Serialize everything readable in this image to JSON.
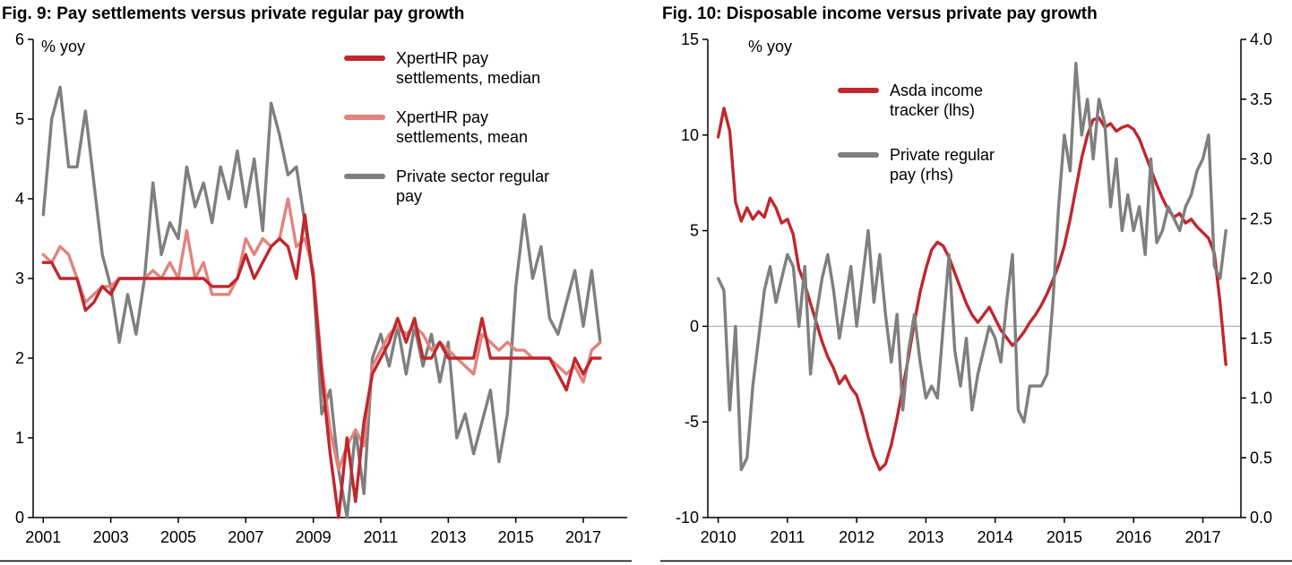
{
  "page": {
    "background": "#ffffff"
  },
  "colors": {
    "dark_red": "#c0272d",
    "light_red": "#e2837e",
    "gray": "#7f7f7f",
    "axis": "#000000",
    "zero_line": "#a6a6a6"
  },
  "chart_data": [
    {
      "type": "line",
      "title": "Fig. 9: Pay settlements versus private regular pay growth",
      "unit_label": "% yoy",
      "xlim": [
        2000.7,
        2018.3
      ],
      "xticks": [
        2001,
        2003,
        2005,
        2007,
        2009,
        2011,
        2013,
        2015,
        2017
      ],
      "axes": {
        "left": {
          "lim": [
            0,
            6
          ],
          "ticks": [
            0,
            1,
            2,
            3,
            4,
            5,
            6
          ],
          "labels": [
            "0",
            "1",
            "2",
            "3",
            "4",
            "5",
            "6"
          ]
        }
      },
      "legend_position": "top-right-inside",
      "grid": "off",
      "series": [
        {
          "name": "Private sector regular pay",
          "color": "#7f7f7f",
          "axis": "left",
          "x_start": 2001.0,
          "x_step": 0.25,
          "y": [
            3.8,
            5.0,
            5.4,
            4.4,
            4.4,
            5.1,
            4.2,
            3.3,
            2.9,
            2.2,
            2.8,
            2.3,
            3.0,
            4.2,
            3.3,
            3.7,
            3.5,
            4.4,
            3.9,
            4.2,
            3.7,
            4.4,
            4.0,
            4.6,
            3.9,
            4.5,
            3.6,
            5.2,
            4.8,
            4.3,
            4.4,
            3.7,
            3.0,
            1.3,
            1.6,
            0.6,
            0.0,
            1.1,
            0.3,
            2.0,
            2.3,
            1.9,
            2.4,
            1.8,
            2.4,
            1.9,
            2.3,
            1.7,
            2.2,
            1.0,
            1.3,
            0.8,
            1.2,
            1.6,
            0.7,
            1.3,
            2.9,
            3.8,
            3.0,
            3.4,
            2.5,
            2.3,
            2.7,
            3.1,
            2.4,
            3.1,
            2.2
          ]
        },
        {
          "name": "XpertHR pay settlements, mean",
          "color": "#e2837e",
          "axis": "left",
          "x_start": 2001.0,
          "x_step": 0.25,
          "y": [
            3.3,
            3.2,
            3.4,
            3.3,
            3.0,
            2.7,
            2.8,
            2.9,
            2.9,
            3.0,
            3.0,
            3.0,
            3.0,
            3.1,
            3.0,
            3.2,
            3.0,
            3.6,
            3.0,
            3.2,
            2.8,
            2.8,
            2.8,
            3.0,
            3.5,
            3.3,
            3.5,
            3.4,
            3.5,
            4.0,
            3.4,
            3.5,
            3.1,
            1.9,
            1.1,
            0.6,
            0.9,
            1.1,
            0.9,
            1.9,
            2.1,
            2.3,
            2.4,
            2.3,
            2.4,
            2.3,
            2.1,
            2.2,
            2.1,
            2.0,
            1.9,
            1.8,
            2.3,
            2.2,
            2.1,
            2.2,
            2.1,
            2.1,
            2.0,
            2.0,
            2.0,
            1.9,
            1.8,
            1.9,
            1.7,
            2.1,
            2.2
          ]
        },
        {
          "name": "XpertHR pay settlements, median",
          "color": "#c0272d",
          "axis": "left",
          "x_start": 2001.0,
          "x_step": 0.25,
          "y": [
            3.2,
            3.2,
            3.0,
            3.0,
            3.0,
            2.6,
            2.7,
            2.9,
            2.8,
            3.0,
            3.0,
            3.0,
            3.0,
            3.0,
            3.0,
            3.0,
            3.0,
            3.0,
            3.0,
            3.0,
            2.9,
            2.9,
            2.9,
            3.0,
            3.3,
            3.0,
            3.2,
            3.4,
            3.5,
            3.4,
            3.0,
            3.8,
            3.0,
            1.8,
            0.8,
            0.0,
            1.0,
            0.2,
            1.2,
            1.8,
            2.0,
            2.2,
            2.5,
            2.2,
            2.5,
            2.0,
            2.0,
            2.2,
            2.0,
            2.0,
            2.0,
            2.0,
            2.5,
            2.0,
            2.0,
            2.0,
            2.0,
            2.0,
            2.0,
            2.0,
            2.0,
            1.8,
            1.6,
            2.0,
            1.8,
            2.0,
            2.0
          ]
        }
      ]
    },
    {
      "type": "line",
      "title": "Fig. 10: Disposable income versus private pay growth",
      "unit_label": "% yoy",
      "xlim": [
        2009.85,
        2017.55
      ],
      "xticks": [
        2010,
        2011,
        2012,
        2013,
        2014,
        2015,
        2016,
        2017
      ],
      "axes": {
        "left": {
          "lim": [
            -10,
            15
          ],
          "ticks": [
            -10,
            -5,
            0,
            5,
            10,
            15
          ],
          "labels": [
            "-10",
            "-5",
            "0",
            "5",
            "10",
            "15"
          ]
        },
        "right": {
          "lim": [
            0,
            4
          ],
          "ticks": [
            0,
            0.5,
            1,
            1.5,
            2,
            2.5,
            3,
            3.5,
            4
          ],
          "labels": [
            "0.0",
            "0.5",
            "1.0",
            "1.5",
            "2.0",
            "2.5",
            "3.0",
            "3.5",
            "4.0"
          ]
        }
      },
      "zero_line": {
        "axis": "left",
        "value": 0,
        "color": "#a6a6a6"
      },
      "legend_position": "top-left-inside",
      "grid": "off",
      "series": [
        {
          "name": "Asda income tracker (lhs)",
          "color": "#c0272d",
          "axis": "left",
          "x_start": 2010.0,
          "x_step": 0.08333,
          "y": [
            9.9,
            11.4,
            10.2,
            6.5,
            5.5,
            6.2,
            5.6,
            6.0,
            5.7,
            6.7,
            6.2,
            5.4,
            5.6,
            4.8,
            3.0,
            2.2,
            1.2,
            0.2,
            -0.8,
            -1.6,
            -2.2,
            -3.0,
            -2.6,
            -3.2,
            -3.6,
            -4.6,
            -5.8,
            -6.8,
            -7.5,
            -7.2,
            -6.2,
            -4.8,
            -3.2,
            -1.6,
            0.2,
            1.8,
            3.0,
            4.0,
            4.4,
            4.2,
            3.6,
            2.8,
            2.0,
            1.2,
            0.6,
            0.2,
            0.6,
            1.0,
            0.4,
            -0.2,
            -0.6,
            -1.0,
            -0.7,
            -0.3,
            0.2,
            0.6,
            1.1,
            1.7,
            2.4,
            3.2,
            4.2,
            5.6,
            7.2,
            8.8,
            10.0,
            10.8,
            10.9,
            10.4,
            10.6,
            10.2,
            10.4,
            10.5,
            10.3,
            9.8,
            9.0,
            8.2,
            7.4,
            6.7,
            6.1,
            5.7,
            5.9,
            5.4,
            5.6,
            5.2,
            4.9,
            4.6,
            3.8,
            1.2,
            -2.0
          ]
        },
        {
          "name": "Private regular pay (rhs)",
          "color": "#7f7f7f",
          "axis": "right",
          "x_start": 2010.0,
          "x_step": 0.08333,
          "y": [
            2.0,
            1.9,
            0.9,
            1.6,
            0.4,
            0.5,
            1.1,
            1.5,
            1.9,
            2.1,
            1.8,
            2.0,
            2.2,
            2.1,
            1.6,
            2.1,
            1.2,
            1.7,
            2.0,
            2.2,
            1.9,
            1.5,
            1.8,
            2.1,
            1.6,
            2.0,
            2.4,
            1.8,
            2.2,
            1.7,
            1.3,
            1.7,
            0.9,
            1.4,
            1.7,
            1.3,
            1.0,
            1.1,
            1.0,
            1.6,
            2.2,
            1.4,
            1.1,
            1.5,
            0.9,
            1.2,
            1.4,
            1.6,
            1.5,
            1.3,
            1.8,
            2.2,
            0.9,
            0.8,
            1.1,
            1.1,
            1.1,
            1.2,
            1.8,
            2.6,
            3.2,
            2.9,
            3.8,
            3.2,
            3.5,
            3.0,
            3.5,
            3.3,
            2.6,
            3.0,
            2.4,
            2.7,
            2.4,
            2.6,
            2.2,
            3.0,
            2.3,
            2.4,
            2.6,
            2.5,
            2.4,
            2.6,
            2.7,
            2.9,
            3.0,
            3.2,
            2.1,
            2.0,
            2.4
          ]
        }
      ]
    }
  ]
}
